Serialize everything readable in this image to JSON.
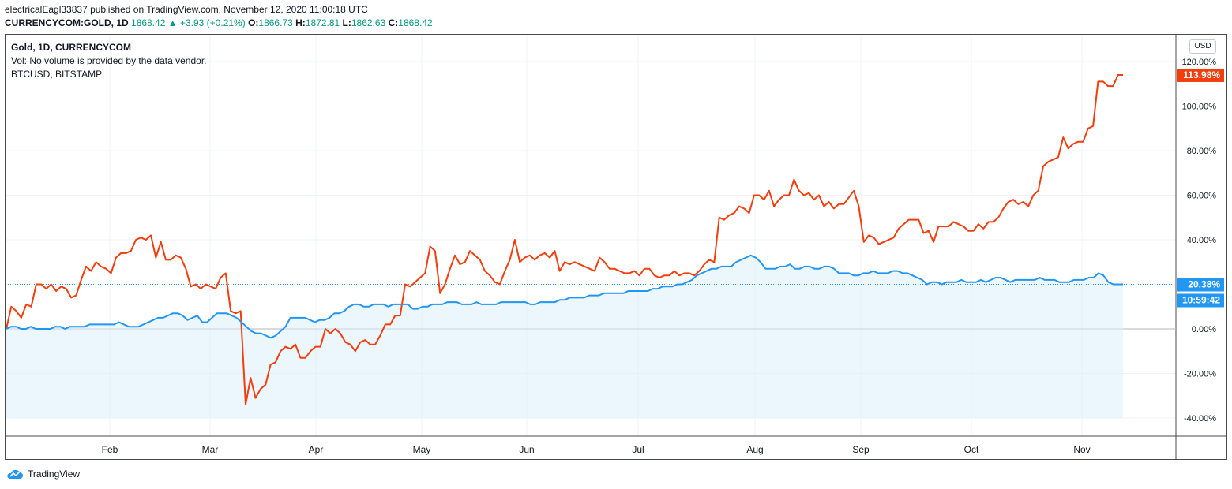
{
  "header": {
    "publisher": "electricalEagl33837 published on TradingView.com, November 12, 2020 11:00:18 UTC",
    "symbol": "CURRENCYCOM:GOLD, 1D",
    "last": "1868.42",
    "arrow": "▲",
    "change": "+3.93 (+0.21%)",
    "open_label": "O:",
    "open": "1866.73",
    "high_label": "H:",
    "high": "1872.81",
    "low_label": "L:",
    "low": "1862.63",
    "close_label": "C:",
    "close": "1868.42"
  },
  "legend": {
    "main": "Gold, 1D, CURRENCYCOM",
    "volume": "Vol: No volume is provided by the data vendor.",
    "compare": "BTCUSD, BITSTAMP"
  },
  "currency": "USD",
  "badges": {
    "btc": "113.98%",
    "gold": "20.38%",
    "countdown": "10:59:42"
  },
  "footer": {
    "brand": "TradingView"
  },
  "colors": {
    "gold": "#2196f3",
    "btc": "#f23d0c",
    "fill": "#dbeefb"
  },
  "chart_data": {
    "type": "line",
    "x_ticks": [
      "Feb",
      "Mar",
      "Apr",
      "May",
      "Jun",
      "Jul",
      "Aug",
      "Sep",
      "Oct",
      "Nov"
    ],
    "y_ticks": [
      "120.00%",
      "100.00%",
      "80.00%",
      "60.00%",
      "40.00%",
      "20.00%",
      "0.00%",
      "-20.00%",
      "-40.00%"
    ],
    "ylim": [
      -40,
      120
    ],
    "series": [
      {
        "name": "BTCUSD, BITSTAMP",
        "values": [
          0,
          10,
          8,
          5,
          11,
          10,
          20,
          20,
          18,
          20,
          17,
          19,
          18,
          14,
          15,
          22,
          28,
          26,
          30,
          28,
          27,
          25,
          32,
          34,
          34,
          35,
          40,
          41,
          40,
          42,
          32,
          39,
          31,
          31,
          33,
          32,
          27,
          19,
          20,
          18,
          20,
          19,
          18,
          23,
          25,
          8,
          7,
          8,
          -34,
          -22,
          -31,
          -27,
          -25,
          -16,
          -15,
          -10,
          -8,
          -9,
          -7,
          -13,
          -13,
          -10,
          -8,
          -8,
          0,
          -2,
          0,
          -2,
          -6,
          -7,
          -10,
          -6,
          -5,
          -7,
          -7,
          -3,
          2,
          2,
          6,
          6,
          20,
          19,
          21,
          23,
          25,
          37,
          35,
          16,
          20,
          27,
          33,
          29,
          30,
          35,
          33,
          31,
          26,
          24,
          21,
          20,
          26,
          31,
          40,
          30,
          32,
          33,
          31,
          33,
          34,
          32,
          35,
          26,
          30,
          29,
          30,
          29,
          28,
          27,
          26,
          32,
          30,
          27,
          27,
          26,
          25,
          25,
          26,
          24,
          27,
          27,
          24,
          23,
          24,
          24,
          26,
          24,
          25,
          25,
          24,
          26,
          29,
          31,
          30,
          50,
          49,
          51,
          52,
          55,
          54,
          52,
          60,
          60,
          58,
          62,
          55,
          58,
          60,
          60,
          67,
          62,
          60,
          61,
          58,
          60,
          55,
          57,
          54,
          56,
          56,
          59,
          62,
          55,
          39,
          42,
          41,
          38,
          39,
          40,
          41,
          45,
          47,
          49,
          49,
          49,
          43,
          44,
          39,
          46,
          46,
          46,
          48,
          47,
          46,
          44,
          44,
          47,
          45,
          48,
          48,
          50,
          54,
          57,
          58,
          56,
          57,
          55,
          60,
          62,
          73,
          75,
          76,
          77,
          86,
          81,
          83,
          84,
          84,
          90,
          91,
          111,
          111,
          109,
          109,
          114,
          114
        ]
      },
      {
        "name": "Gold, 1D, CURRENCYCOM",
        "values": [
          0,
          1,
          1,
          0,
          0,
          1,
          0,
          0,
          0,
          0,
          1,
          1,
          0,
          1,
          1,
          1,
          1,
          2,
          2,
          2,
          2,
          2,
          2,
          3,
          2,
          1,
          1,
          1,
          2,
          3,
          4,
          5,
          5,
          6,
          7,
          7,
          6,
          4,
          5,
          6,
          3,
          3,
          5,
          7,
          7,
          7,
          6,
          5,
          3,
          1,
          -1,
          -2,
          -2,
          -3,
          -4,
          -3,
          -1,
          1,
          5,
          5,
          5,
          5,
          4,
          3,
          4,
          4,
          5,
          7,
          7,
          8,
          10,
          11,
          11,
          10,
          10,
          11,
          11,
          11,
          10,
          11,
          11,
          11,
          11,
          9,
          9,
          10,
          10,
          11,
          11,
          11,
          12,
          12,
          12,
          11,
          11,
          11,
          12,
          11,
          11,
          11,
          11,
          12,
          12,
          12,
          12,
          12,
          12,
          11,
          11,
          12,
          12,
          12,
          12,
          13,
          13,
          14,
          14,
          14,
          14,
          15,
          15,
          15,
          16,
          16,
          16,
          16,
          16,
          17,
          17,
          17,
          17,
          17,
          18,
          18,
          19,
          19,
          19,
          20,
          20,
          21,
          22,
          24,
          25,
          26,
          27,
          27,
          28,
          28,
          28,
          30,
          31,
          32,
          33,
          32,
          30,
          27,
          27,
          27,
          28,
          28,
          29,
          27,
          27,
          28,
          28,
          27,
          27,
          28,
          28,
          27,
          25,
          25,
          25,
          24,
          24,
          25,
          25,
          26,
          25,
          25,
          25,
          26,
          26,
          25,
          25,
          24,
          23,
          22,
          20,
          21,
          21,
          20,
          21,
          21,
          21,
          22,
          21,
          21,
          21,
          22,
          21,
          22,
          23,
          23,
          22,
          21,
          22,
          22,
          22,
          22,
          22,
          23,
          22,
          22,
          22,
          21,
          21,
          21,
          22,
          22,
          22,
          23,
          23,
          25,
          24,
          21,
          20,
          20,
          20
        ]
      }
    ]
  }
}
